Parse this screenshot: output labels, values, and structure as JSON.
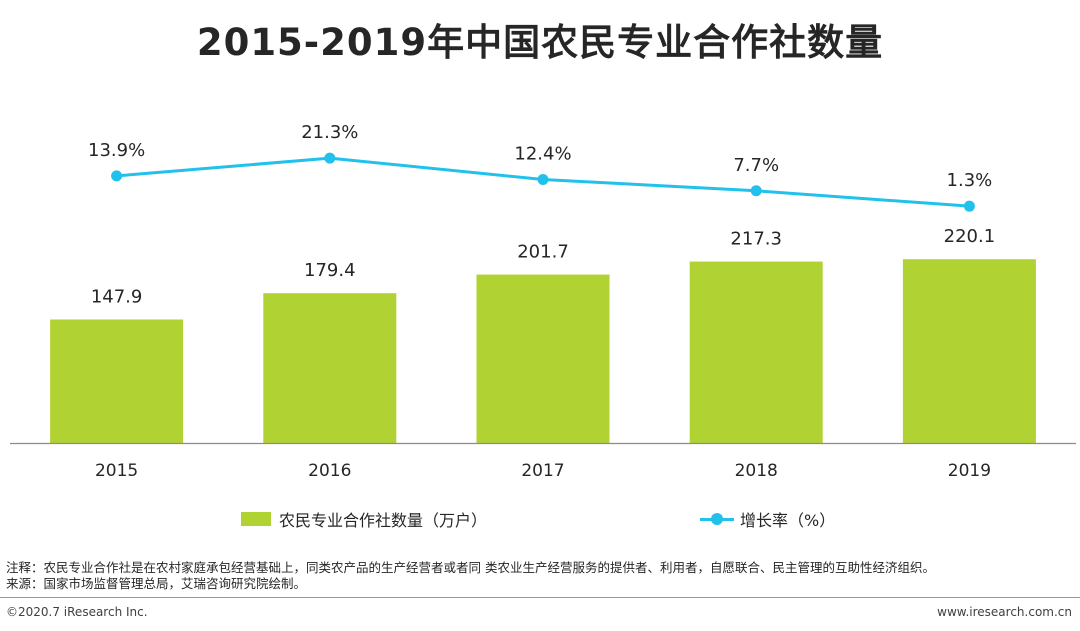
{
  "title": "2015-2019年中国农民专业合作社数量",
  "colors": {
    "bar": "#b0d232",
    "line": "#21c1ec",
    "axis": "#8c8c8c",
    "text": "#262626"
  },
  "chart_data": {
    "type": "bar",
    "categories": [
      "2015",
      "2016",
      "2017",
      "2018",
      "2019"
    ],
    "series": [
      {
        "name": "农民专业合作社数量（万户）",
        "type": "bar",
        "values": [
          147.9,
          179.4,
          201.7,
          217.3,
          220.1
        ],
        "labels": [
          "147.9",
          "179.4",
          "201.7",
          "217.3",
          "220.1"
        ]
      },
      {
        "name": "增长率（%）",
        "type": "line",
        "values": [
          13.9,
          21.3,
          12.4,
          7.7,
          1.3
        ],
        "labels": [
          "13.9%",
          "21.3%",
          "12.4%",
          "7.7%",
          "1.3%"
        ]
      }
    ],
    "legend_position": "bottom",
    "grid": false
  },
  "legend": {
    "bar_label": "农民专业合作社数量（万户）",
    "line_label": "增长率（%）"
  },
  "notes": {
    "note": "注释：农民专业合作社是在农村家庭承包经营基础上，同类农产品的生产经营者或者同 类农业生产经营服务的提供者、利用者，自愿联合、民主管理的互助性经济组织。",
    "source": "来源：国家市场监督管理总局，艾瑞咨询研究院绘制。"
  },
  "footer": {
    "copyright": "©2020.7 iResearch Inc.",
    "website": "www.iresearch.com.cn"
  }
}
